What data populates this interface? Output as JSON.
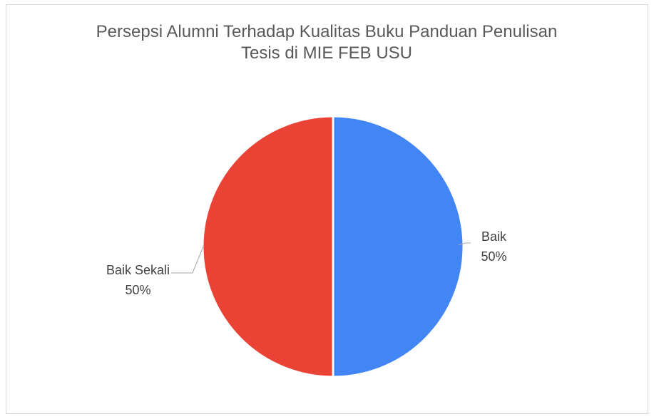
{
  "chart_data": {
    "type": "pie",
    "title": "Persepsi Alumni Terhadap Kualitas Buku Panduan Penulisan Tesis di MIE FEB USU",
    "categories": [
      "Baik",
      "Baik Sekali"
    ],
    "values": [
      50,
      50
    ],
    "value_labels": [
      "50%",
      "50%"
    ],
    "colors": [
      "#4285f4",
      "#ea4335"
    ]
  }
}
